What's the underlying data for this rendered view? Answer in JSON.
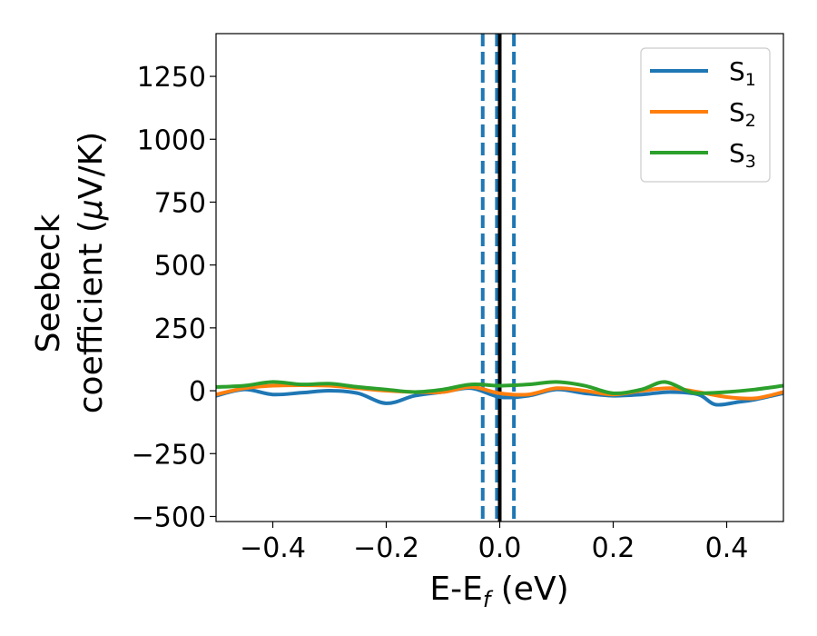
{
  "chart_data": {
    "type": "line",
    "title": "",
    "xlabel": "E-E",
    "xlabel_sub": "f",
    "xlabel_unit": " (eV)",
    "ylabel_line1": "Seebeck",
    "ylabel_line2": "coefficient  (",
    "ylabel_mu": "μ",
    "ylabel_unit": "V/K)",
    "xlim": [
      -0.5,
      0.5
    ],
    "ylim": [
      -520,
      1420
    ],
    "x_ticks": [
      -0.4,
      -0.2,
      0.0,
      0.2,
      0.4
    ],
    "x_tick_labels": [
      "−0.4",
      "−0.2",
      "0.0",
      "0.2",
      "0.4"
    ],
    "y_ticks": [
      -500,
      -250,
      0,
      250,
      500,
      750,
      1000,
      1250
    ],
    "y_tick_labels": [
      "−500",
      "−250",
      "0",
      "250",
      "500",
      "750",
      "1000",
      "1250"
    ],
    "grid": false,
    "legend_position": "top-right",
    "vlines": [
      {
        "x": -0.03,
        "style": "dashed",
        "color": "#1f77b4"
      },
      {
        "x": -0.005,
        "style": "dashed",
        "color": "#1f77b4"
      },
      {
        "x": 0.0,
        "style": "solid",
        "color": "#000000"
      },
      {
        "x": 0.025,
        "style": "dashed",
        "color": "#1f77b4"
      }
    ],
    "series": [
      {
        "name": "S",
        "sub": "1",
        "color": "#1f77b4",
        "points": [
          [
            -0.5,
            -20
          ],
          [
            -0.45,
            5
          ],
          [
            -0.4,
            -15
          ],
          [
            -0.35,
            -8
          ],
          [
            -0.3,
            0
          ],
          [
            -0.25,
            -10
          ],
          [
            -0.2,
            -50
          ],
          [
            -0.15,
            -20
          ],
          [
            -0.1,
            -5
          ],
          [
            -0.05,
            10
          ],
          [
            0.0,
            -25
          ],
          [
            0.05,
            -20
          ],
          [
            0.1,
            5
          ],
          [
            0.15,
            -10
          ],
          [
            0.2,
            -20
          ],
          [
            0.25,
            -15
          ],
          [
            0.3,
            -5
          ],
          [
            0.35,
            -15
          ],
          [
            0.38,
            -55
          ],
          [
            0.42,
            -45
          ],
          [
            0.45,
            -35
          ],
          [
            0.5,
            -10
          ]
        ]
      },
      {
        "name": "S",
        "sub": "2",
        "color": "#ff7f0e",
        "points": [
          [
            -0.5,
            -15
          ],
          [
            -0.45,
            10
          ],
          [
            -0.4,
            20
          ],
          [
            -0.35,
            22
          ],
          [
            -0.3,
            20
          ],
          [
            -0.25,
            10
          ],
          [
            -0.2,
            0
          ],
          [
            -0.15,
            -5
          ],
          [
            -0.1,
            -5
          ],
          [
            -0.05,
            15
          ],
          [
            0.0,
            -10
          ],
          [
            0.05,
            -15
          ],
          [
            0.1,
            10
          ],
          [
            0.15,
            0
          ],
          [
            0.2,
            -15
          ],
          [
            0.25,
            0
          ],
          [
            0.3,
            10
          ],
          [
            0.35,
            -5
          ],
          [
            0.4,
            -25
          ],
          [
            0.45,
            -30
          ],
          [
            0.5,
            -5
          ]
        ]
      },
      {
        "name": "S",
        "sub": "3",
        "color": "#2ca02c",
        "points": [
          [
            -0.5,
            15
          ],
          [
            -0.45,
            20
          ],
          [
            -0.4,
            35
          ],
          [
            -0.35,
            25
          ],
          [
            -0.3,
            28
          ],
          [
            -0.25,
            15
          ],
          [
            -0.2,
            5
          ],
          [
            -0.15,
            -5
          ],
          [
            -0.1,
            5
          ],
          [
            -0.05,
            25
          ],
          [
            0.0,
            20
          ],
          [
            0.05,
            25
          ],
          [
            0.1,
            35
          ],
          [
            0.15,
            20
          ],
          [
            0.2,
            -10
          ],
          [
            0.25,
            5
          ],
          [
            0.29,
            35
          ],
          [
            0.33,
            0
          ],
          [
            0.35,
            -10
          ],
          [
            0.4,
            -5
          ],
          [
            0.45,
            5
          ],
          [
            0.5,
            20
          ]
        ]
      }
    ]
  }
}
